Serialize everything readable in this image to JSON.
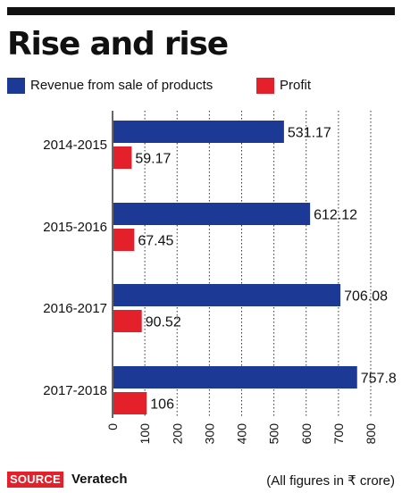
{
  "header": {
    "title": "Rise and rise"
  },
  "colors": {
    "revenue": "#1c3a95",
    "profit": "#e4202a",
    "text": "#111111",
    "grid": "#333333"
  },
  "footer": {
    "source_label": "SOURCE",
    "source_name": "Veratech",
    "units_note": "(All figures in ₹ crore)"
  },
  "chart_data": {
    "type": "bar",
    "orientation": "horizontal",
    "categories": [
      "2014-2015",
      "2015-2016",
      "2016-2017",
      "2017-2018"
    ],
    "series": [
      {
        "name": "Revenue from sale of products",
        "values": [
          531.17,
          612.12,
          706.08,
          757.8
        ],
        "labels": [
          "531.17",
          "612.12",
          "706.08",
          "757.8"
        ]
      },
      {
        "name": "Profit",
        "values": [
          59.17,
          67.45,
          90.52,
          106
        ],
        "labels": [
          "59.17",
          "67.45",
          "90.52",
          "106"
        ]
      }
    ],
    "xlim": [
      0,
      800
    ],
    "ticks": [
      0,
      100,
      200,
      300,
      400,
      500,
      600,
      700,
      800
    ],
    "tick_labels": [
      "0",
      "100",
      "200",
      "300",
      "400",
      "500",
      "600",
      "700",
      "800"
    ],
    "grid": true,
    "legend_position": "top-left",
    "xlabel": "",
    "ylabel": ""
  }
}
